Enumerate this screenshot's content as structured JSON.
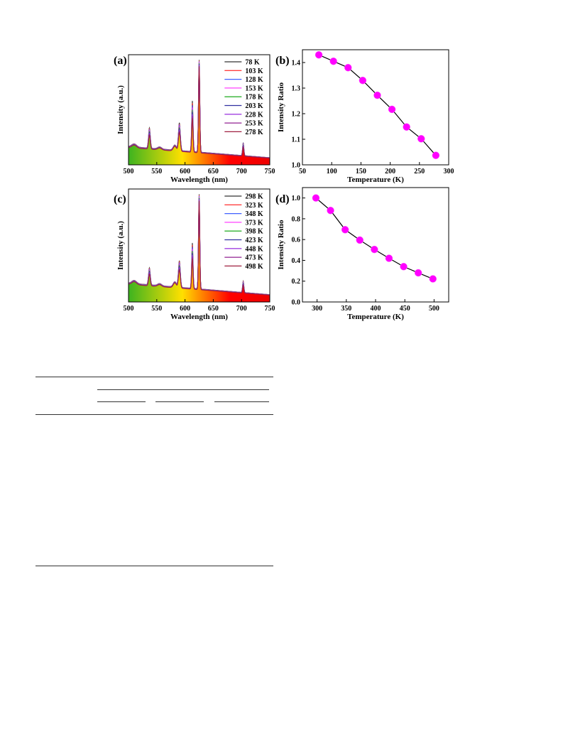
{
  "chart_data": [
    {
      "type": "line",
      "panel_label": "(a)",
      "xlabel": "Wavelength (nm)",
      "ylabel": "Intensity (a.u.)",
      "xlim": [
        500,
        750
      ],
      "x_ticks": [
        "500",
        "550",
        "600",
        "650",
        "700",
        "750"
      ],
      "legend_position": "top-right",
      "legend": [
        "78   K",
        "103 K",
        "128 K",
        "153 K",
        "178 K",
        "203 K",
        "228 K",
        "253 K",
        "278 K"
      ],
      "series_colors": [
        "#333333",
        "#ff4040",
        "#4060ff",
        "#ff40ff",
        "#30b030",
        "#3030a0",
        "#a040e0",
        "#902090",
        "#a02040"
      ],
      "peak_x": [
        537,
        590,
        613,
        625,
        703
      ],
      "relative_peak_height": [
        0.22,
        0.3,
        0.55,
        1.0,
        0.14
      ],
      "fill_gradient": [
        "#3db320",
        "#ffe000",
        "#ff0000",
        "#ee0000"
      ]
    },
    {
      "type": "line",
      "panel_label": "(b)",
      "xlabel": "Temperature (K)",
      "ylabel": "Intensity Ratio",
      "xlim": [
        50,
        300
      ],
      "ylim": [
        1.0,
        1.45
      ],
      "x_ticks": [
        "50",
        "100",
        "150",
        "200",
        "250",
        "300"
      ],
      "y_ticks": [
        "1.0",
        "1.1",
        "1.2",
        "1.3",
        "1.4"
      ],
      "x": [
        78,
        103,
        128,
        153,
        178,
        203,
        228,
        253,
        278
      ],
      "y": [
        1.43,
        1.405,
        1.38,
        1.33,
        1.272,
        1.217,
        1.148,
        1.102,
        1.037
      ],
      "marker_color": "#ff00ff",
      "line_color": "#000000"
    },
    {
      "type": "line",
      "panel_label": "(c)",
      "xlabel": "Wavelength (nm)",
      "ylabel": "Intensity (a.u.)",
      "xlim": [
        500,
        750
      ],
      "x_ticks": [
        "500",
        "550",
        "600",
        "650",
        "700",
        "750"
      ],
      "legend_position": "top-right",
      "legend": [
        "298 K",
        "323 K",
        "348 K",
        "373 K",
        "398 K",
        "423 K",
        "448 K",
        "473 K",
        "498 K"
      ],
      "series_colors": [
        "#333333",
        "#ff4040",
        "#4060ff",
        "#ff40ff",
        "#30b030",
        "#3030a0",
        "#a040e0",
        "#902090",
        "#a02040"
      ],
      "peak_x": [
        537,
        590,
        613,
        625,
        703
      ],
      "relative_peak_height": [
        0.18,
        0.28,
        0.48,
        1.0,
        0.12
      ],
      "fill_gradient": [
        "#3db320",
        "#ffe000",
        "#ff0000",
        "#ee0000"
      ]
    },
    {
      "type": "line",
      "panel_label": "(d)",
      "xlabel": "Temperature (K)",
      "ylabel": "Intensity Ratio",
      "xlim": [
        275,
        525
      ],
      "ylim": [
        0.0,
        1.1
      ],
      "x_ticks": [
        "300",
        "350",
        "400",
        "450",
        "500"
      ],
      "y_ticks": [
        "0.0",
        "0.2",
        "0.4",
        "0.6",
        "0.8",
        "1.0"
      ],
      "x": [
        298,
        323,
        348,
        373,
        398,
        423,
        448,
        473,
        498
      ],
      "y": [
        1.0,
        0.88,
        0.695,
        0.595,
        0.505,
        0.42,
        0.34,
        0.28,
        0.222
      ],
      "marker_color": "#ff00ff",
      "line_color": "#000000"
    }
  ]
}
